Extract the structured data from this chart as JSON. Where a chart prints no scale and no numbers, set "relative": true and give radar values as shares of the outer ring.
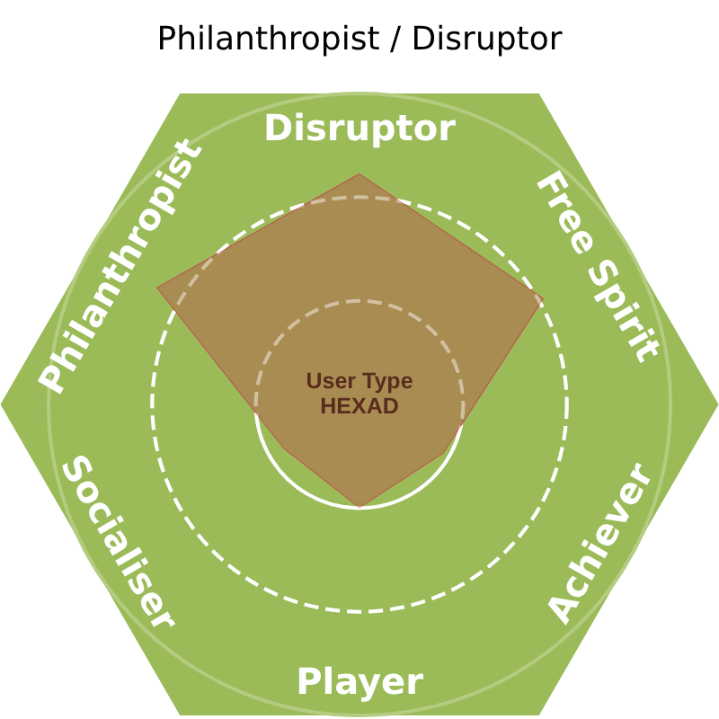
{
  "chart_data": {
    "type": "radar",
    "title": "Philanthropist / Disruptor",
    "categories": [
      "Disruptor",
      "Free Spirit",
      "Achiever",
      "Player",
      "Socialiser",
      "Philanthropist"
    ],
    "series": [
      {
        "color": "#a98c52",
        "values": [
          0.74,
          0.68,
          0.31,
          0.33,
          0.28,
          0.75
        ]
      }
    ],
    "relative": true,
    "grid": true,
    "marker": "none",
    "line_style": "solid",
    "annotations": [
      "User Type",
      "HEXAD"
    ]
  }
}
